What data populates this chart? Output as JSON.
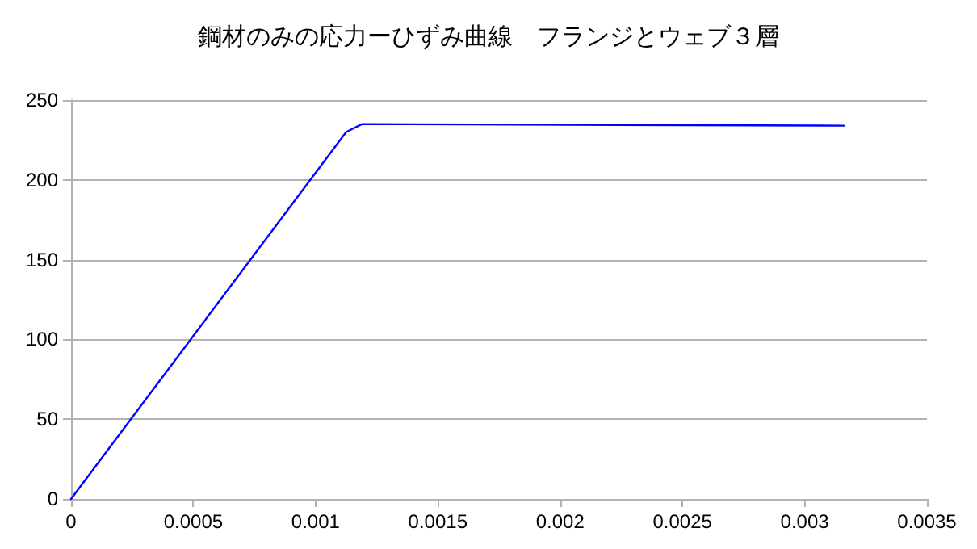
{
  "chart_data": {
    "type": "line",
    "title": "鋼材のみの応力ーひずみ曲線　フランジとウェブ３層",
    "x": [
      0,
      0.001125,
      0.00119,
      0.00316
    ],
    "series": [
      {
        "color": "#0000ff",
        "values": [
          0,
          230,
          235,
          234
        ]
      }
    ],
    "xlim": [
      0,
      0.0035
    ],
    "xticks": [
      0,
      0.0005,
      0.001,
      0.0015,
      0.002,
      0.0025,
      0.003,
      0.0035
    ],
    "ylim": [
      0,
      250
    ],
    "yticks": [
      0,
      50,
      100,
      150,
      200,
      250
    ],
    "grid": "y",
    "marker": "none",
    "line_style": "solid"
  }
}
